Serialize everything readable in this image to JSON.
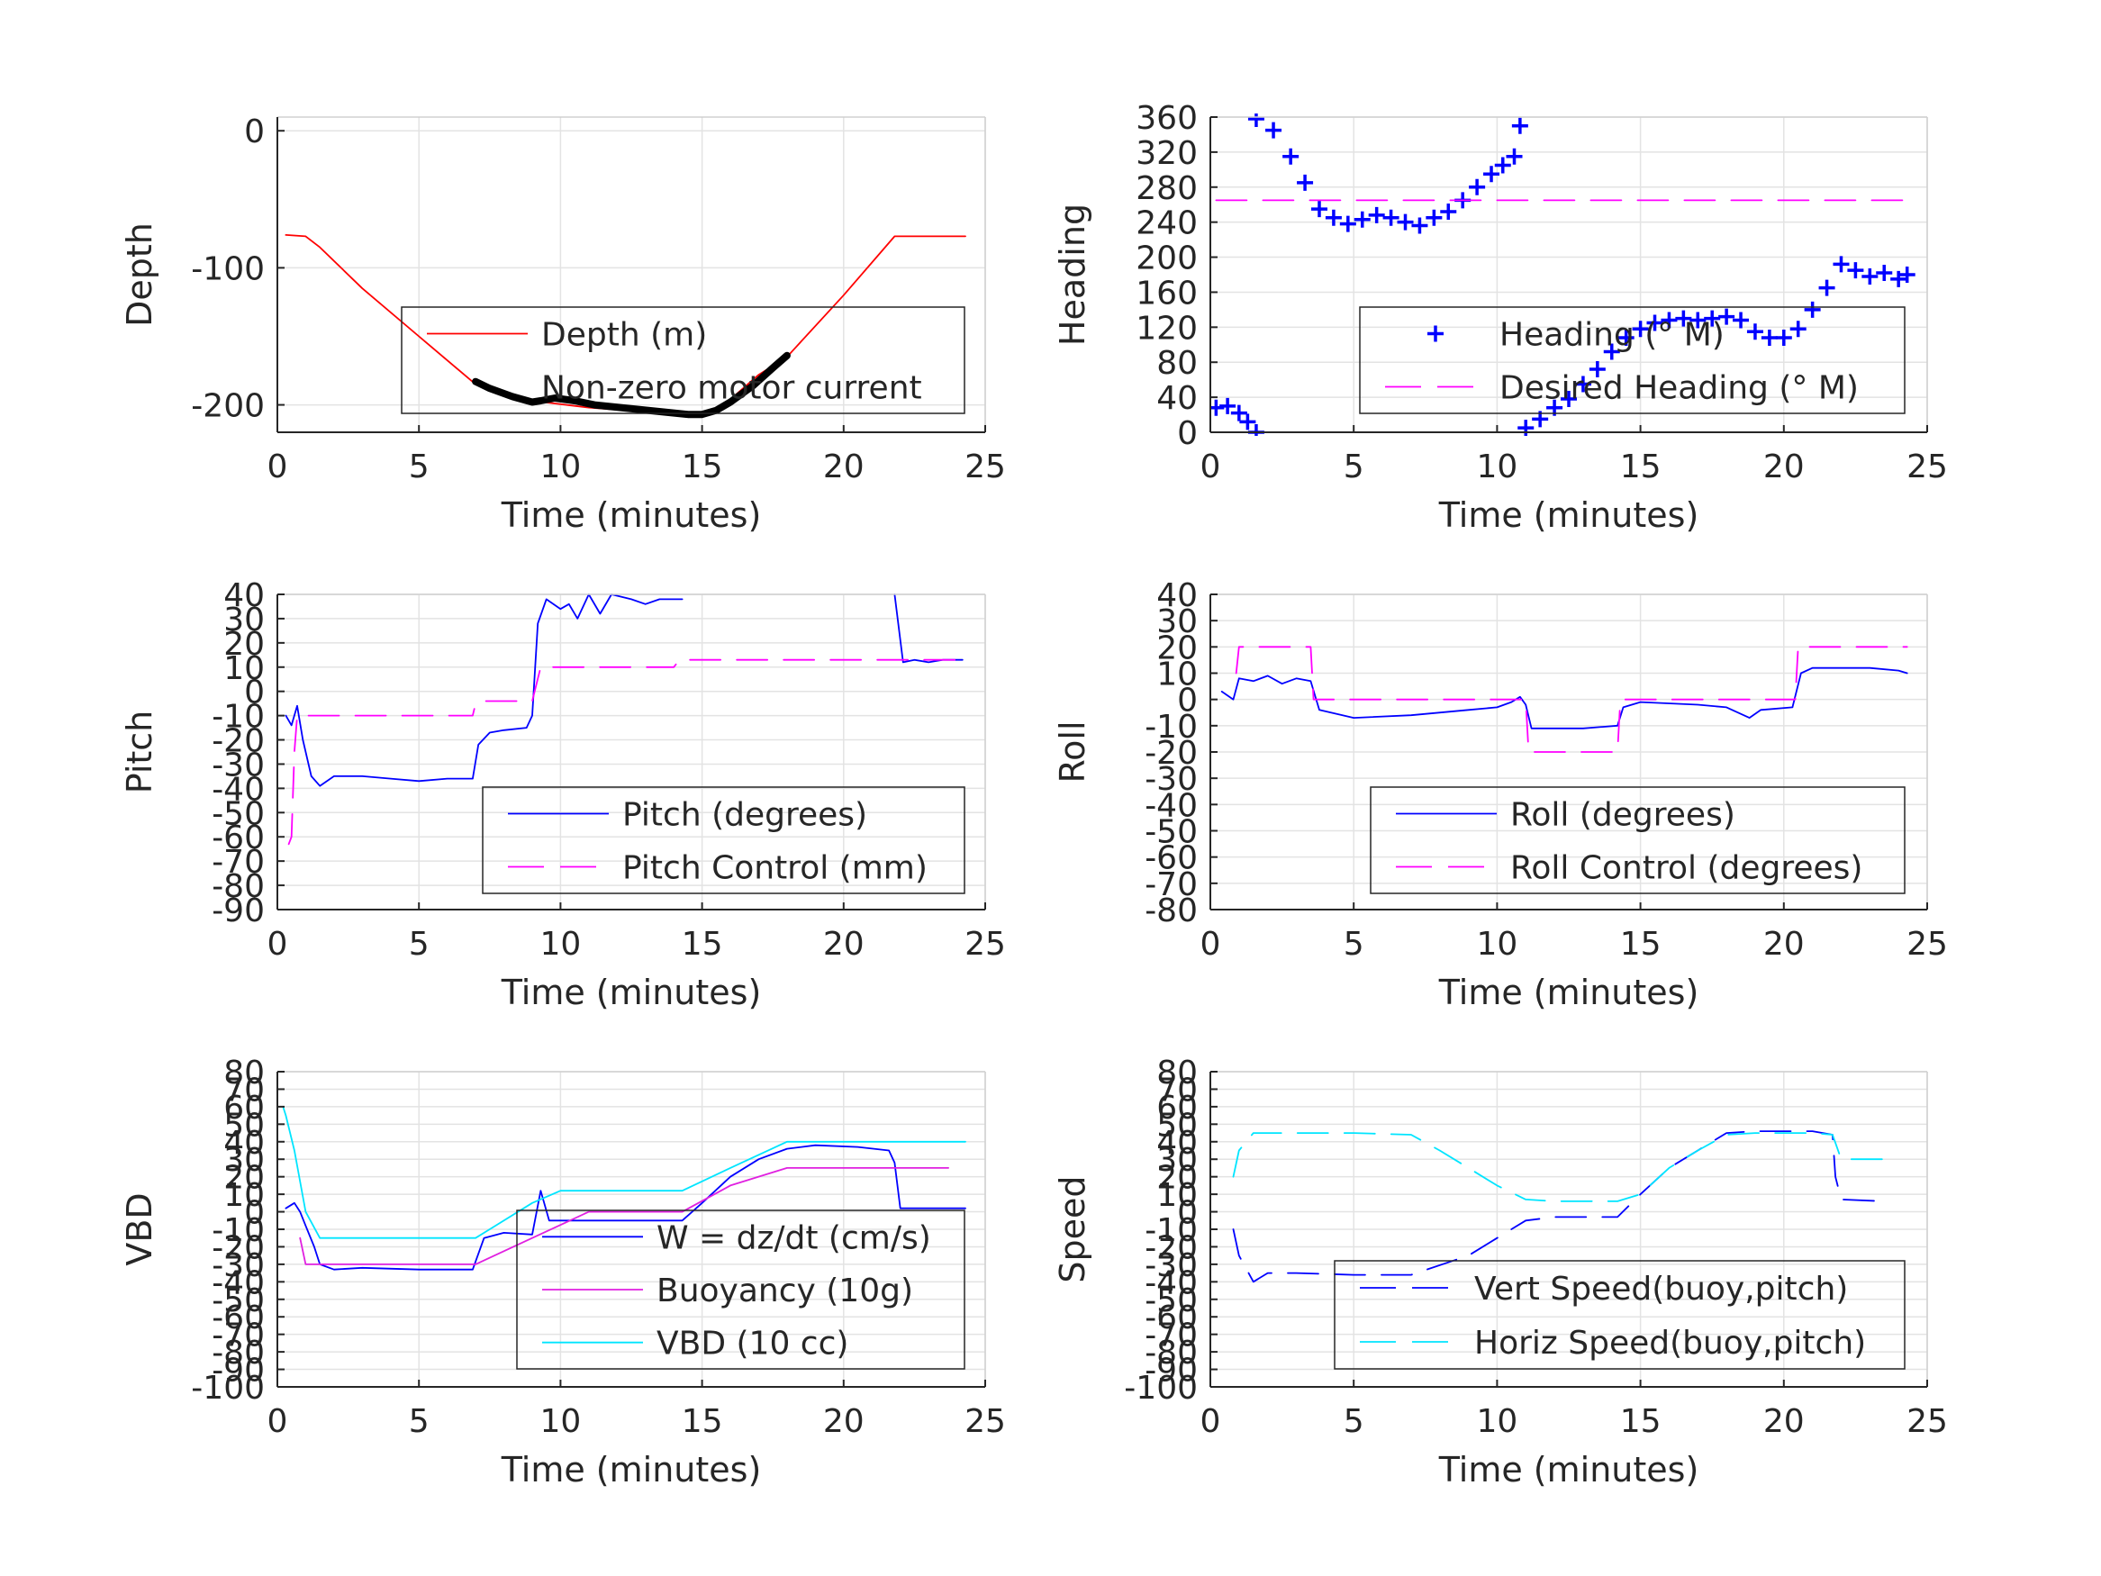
{
  "chart_data": [
    {
      "id": "depth",
      "type": "line",
      "xlabel": "Time (minutes)",
      "ylabel": "Depth",
      "xlim": [
        0,
        25
      ],
      "ylim": [
        -220,
        10
      ],
      "xticks": [
        0,
        5,
        10,
        15,
        20,
        25
      ],
      "yticks": [
        -200,
        -100,
        0
      ],
      "grid": true,
      "legend": {
        "placement": "center-bottom",
        "entries": [
          "Depth (m)",
          "Non-zero motor current"
        ]
      },
      "series": [
        {
          "name": "Depth (m)",
          "color": "#ff0000",
          "style": "solid",
          "x": [
            0.3,
            1.0,
            1.5,
            3.0,
            5.0,
            7.0,
            9.0,
            11.0,
            13.0,
            14.5,
            15.5,
            17.0,
            18.0,
            20.0,
            21.8,
            24.3
          ],
          "y": [
            -76,
            -77,
            -85,
            -115,
            -150,
            -185,
            -197,
            -202,
            -205,
            -208,
            -205,
            -178,
            -165,
            -120,
            -77,
            -77
          ]
        },
        {
          "name": "Non-zero motor current",
          "color": "#000000",
          "style": "thick",
          "x": [
            7.0,
            7.5,
            8.3,
            9.0,
            9.3,
            9.8,
            10.5,
            11.2,
            14.5,
            15.0,
            15.5,
            16.0,
            16.8,
            17.5,
            18.0
          ],
          "y": [
            -183,
            -188,
            -194,
            -198,
            -197,
            -195,
            -197,
            -200,
            -207,
            -207,
            -204,
            -198,
            -186,
            -173,
            -164
          ]
        }
      ]
    },
    {
      "id": "heading",
      "type": "scatter",
      "xlabel": "Time (minutes)",
      "ylabel": "Heading",
      "xlim": [
        0,
        25
      ],
      "ylim": [
        0,
        360
      ],
      "xticks": [
        0,
        5,
        10,
        15,
        20,
        25
      ],
      "yticks": [
        0,
        40,
        80,
        120,
        160,
        200,
        240,
        280,
        320,
        360
      ],
      "grid": true,
      "legend": {
        "placement": "bottom-right",
        "entries": [
          "Heading (° M)",
          "Desired Heading (° M)"
        ]
      },
      "series": [
        {
          "name": "Heading (° M)",
          "color": "#0000ff",
          "marker": "+",
          "x": [
            0.2,
            0.6,
            1.0,
            1.3,
            1.6,
            1.6,
            2.2,
            2.8,
            3.3,
            3.8,
            4.3,
            4.8,
            5.3,
            5.8,
            6.3,
            6.8,
            7.3,
            7.8,
            8.3,
            8.8,
            9.3,
            9.8,
            10.2,
            10.6,
            10.8,
            11.0,
            11.5,
            12.0,
            12.5,
            13.0,
            13.5,
            14.0,
            14.5,
            15.0,
            15.5,
            16.0,
            16.5,
            17.0,
            17.5,
            18.0,
            18.5,
            19.0,
            19.5,
            20.0,
            20.5,
            21.0,
            21.5,
            22.0,
            22.5,
            23.0,
            23.5,
            24.0,
            24.3
          ],
          "y": [
            28,
            30,
            22,
            12,
            0,
            358,
            345,
            315,
            285,
            255,
            245,
            238,
            243,
            248,
            245,
            240,
            236,
            245,
            252,
            265,
            280,
            295,
            305,
            315,
            350,
            5,
            15,
            28,
            38,
            55,
            72,
            92,
            108,
            118,
            125,
            128,
            130,
            128,
            130,
            132,
            128,
            115,
            108,
            108,
            118,
            140,
            165,
            192,
            185,
            178,
            182,
            175,
            180
          ]
        },
        {
          "name": "Desired Heading (° M)",
          "color": "#ff00ff",
          "style": "dashed",
          "x": [
            0.2,
            24.3
          ],
          "y": [
            265,
            265
          ]
        }
      ]
    },
    {
      "id": "pitch",
      "type": "line",
      "xlabel": "Time (minutes)",
      "ylabel": "Pitch",
      "xlim": [
        0,
        25
      ],
      "ylim": [
        -90,
        40
      ],
      "xticks": [
        0,
        5,
        10,
        15,
        20,
        25
      ],
      "yticks": [
        -90,
        -80,
        -70,
        -60,
        -50,
        -40,
        -30,
        -20,
        -10,
        0,
        10,
        20,
        30,
        40
      ],
      "grid": true,
      "legend": {
        "placement": "bottom-right",
        "entries": [
          "Pitch (degrees)",
          "Pitch Control (mm)"
        ]
      },
      "series": [
        {
          "name": "Pitch (degrees)",
          "color": "#0000ff",
          "style": "solid",
          "x": [
            0.3,
            0.5,
            0.7,
            0.9,
            1.2,
            1.5,
            2.0,
            3.0,
            4.0,
            5.0,
            6.0,
            6.9,
            7.1,
            7.5,
            8.0,
            8.8,
            9.0,
            9.2,
            9.5,
            10.0,
            10.3,
            10.6,
            11.0,
            11.4,
            11.8,
            12.5,
            13.0,
            13.5,
            14.3
          ],
          "y": [
            -10,
            -14,
            -6,
            -20,
            -35,
            -39,
            -35,
            -35,
            -36,
            -37,
            -36,
            -36,
            -22,
            -17,
            -16,
            -15,
            -10,
            28,
            38,
            34,
            36,
            30,
            40,
            32,
            40,
            38,
            36,
            38,
            38
          ]
        },
        {
          "name": "Pitch (degrees)",
          "color": "#0000ff",
          "style": "solid",
          "x": [
            21.8,
            22.1,
            22.5,
            23.0,
            23.5,
            24.2
          ],
          "y": [
            40,
            12,
            13,
            12,
            13,
            13
          ]
        },
        {
          "name": "Pitch Control (mm)",
          "color": "#ff00ff",
          "style": "dashed",
          "x": [
            0.4,
            0.5,
            0.6,
            0.7,
            1.0,
            3.0,
            5.0,
            6.9,
            7.0,
            7.3,
            9.0,
            9.3,
            11.0,
            13.0,
            14.0,
            14.2,
            16.0,
            20.0,
            24.3
          ],
          "y": [
            -63,
            -60,
            -25,
            -10,
            -10,
            -10,
            -10,
            -10,
            -5,
            -4,
            -4,
            10,
            10,
            10,
            10,
            13,
            13,
            13,
            13
          ]
        }
      ]
    },
    {
      "id": "roll",
      "type": "line",
      "xlabel": "Time (minutes)",
      "ylabel": "Roll",
      "xlim": [
        0,
        25
      ],
      "ylim": [
        -80,
        40
      ],
      "xticks": [
        0,
        5,
        10,
        15,
        20,
        25
      ],
      "yticks": [
        -80,
        -70,
        -60,
        -50,
        -40,
        -30,
        -20,
        -10,
        0,
        10,
        20,
        30,
        40
      ],
      "grid": true,
      "legend": {
        "placement": "bottom-right",
        "entries": [
          "Roll (degrees)",
          "Roll Control (degrees)"
        ]
      },
      "series": [
        {
          "name": "Roll (degrees)",
          "color": "#0000ff",
          "style": "solid",
          "x": [
            0.4,
            0.8,
            1.0,
            1.5,
            2.0,
            2.5,
            3.0,
            3.5,
            3.8,
            5.0,
            7.0,
            9.0,
            10.0,
            10.5,
            10.8,
            11.0,
            11.2,
            12.0,
            13.0,
            14.2,
            14.4,
            15.0,
            17.0,
            18.0,
            18.8,
            19.2,
            20.3,
            20.6,
            21.0,
            22.0,
            23.0,
            24.0,
            24.3
          ],
          "y": [
            3,
            0,
            8,
            7,
            9,
            6,
            8,
            7,
            -4,
            -7,
            -6,
            -4,
            -3,
            -1,
            1,
            -2,
            -11,
            -11,
            -11,
            -10,
            -3,
            -1,
            -2,
            -3,
            -7,
            -4,
            -3,
            10,
            12,
            12,
            12,
            11,
            10
          ]
        },
        {
          "name": "Roll Control (degrees)",
          "color": "#ff00ff",
          "style": "dashed",
          "x": [
            0.9,
            1.0,
            3.5,
            3.6,
            11.0,
            11.1,
            14.2,
            14.3,
            20.4,
            20.5,
            24.3
          ],
          "y": [
            10,
            20,
            20,
            0,
            0,
            -20,
            -20,
            0,
            0,
            20,
            20
          ]
        }
      ]
    },
    {
      "id": "vbd",
      "type": "line",
      "xlabel": "Time (minutes)",
      "ylabel": "VBD",
      "xlim": [
        0,
        25
      ],
      "ylim": [
        -100,
        80
      ],
      "xticks": [
        0,
        5,
        10,
        15,
        20,
        25
      ],
      "yticks": [
        -100,
        -90,
        -80,
        -70,
        -60,
        -50,
        -40,
        -30,
        -20,
        -10,
        0,
        10,
        20,
        30,
        40,
        50,
        60,
        70,
        80
      ],
      "grid": true,
      "legend": {
        "placement": "bottom-right",
        "entries": [
          "W = dz/dt (cm/s)",
          "Buoyancy (10g)",
          "VBD (10 cc)"
        ]
      },
      "series": [
        {
          "name": "W = dz/dt (cm/s)",
          "color": "#0000ff",
          "style": "solid",
          "x": [
            0.3,
            0.6,
            0.8,
            1.0,
            1.3,
            1.5,
            2.0,
            3.0,
            5.0,
            6.9,
            7.3,
            8.0,
            9.0,
            9.3,
            9.6,
            10.0,
            11.0,
            13.0,
            14.3,
            15.0,
            16.0,
            17.0,
            18.0,
            19.0,
            20.5,
            21.6,
            21.8,
            22.0,
            22.5,
            23.5,
            24.3
          ],
          "y": [
            2,
            5,
            0,
            -8,
            -20,
            -30,
            -33,
            -32,
            -33,
            -33,
            -15,
            -12,
            -13,
            12,
            -5,
            -5,
            -5,
            -5,
            -5,
            5,
            20,
            30,
            36,
            38,
            37,
            35,
            28,
            2,
            2,
            2,
            2
          ]
        },
        {
          "name": "Buoyancy (10g)",
          "color": "#e020e0",
          "style": "solid",
          "x": [
            0.8,
            1.0,
            3.0,
            5.0,
            7.0,
            9.0,
            11.0,
            13.0,
            14.3,
            16.0,
            18.0,
            20.0,
            22.0,
            23.7
          ],
          "y": [
            -15,
            -30,
            -30,
            -30,
            -30,
            -15,
            0,
            0,
            0,
            15,
            25,
            25,
            25,
            25
          ]
        },
        {
          "name": "VBD (10 cc)",
          "color": "#00e5ff",
          "style": "solid",
          "x": [
            0.2,
            0.3,
            0.6,
            1.0,
            1.5,
            3.0,
            5.0,
            7.0,
            7.5,
            9.0,
            10.0,
            11.0,
            12.0,
            13.0,
            14.3,
            16.0,
            18.0,
            20.0,
            22.0,
            24.3
          ],
          "y": [
            60,
            55,
            35,
            0,
            -15,
            -15,
            -15,
            -15,
            -10,
            5,
            12,
            12,
            12,
            12,
            12,
            25,
            40,
            40,
            40,
            40
          ]
        }
      ]
    },
    {
      "id": "speed",
      "type": "line",
      "xlabel": "Time (minutes)",
      "ylabel": "Speed",
      "xlim": [
        0,
        25
      ],
      "ylim": [
        -100,
        80
      ],
      "xticks": [
        0,
        5,
        10,
        15,
        20,
        25
      ],
      "yticks": [
        -100,
        -90,
        -80,
        -70,
        -60,
        -50,
        -40,
        -30,
        -20,
        -10,
        0,
        10,
        20,
        30,
        40,
        50,
        60,
        70,
        80
      ],
      "grid": true,
      "legend": {
        "placement": "bottom-right",
        "entries": [
          "Vert Speed(buoy,pitch)",
          "Horiz Speed(buoy,pitch)"
        ]
      },
      "series": [
        {
          "name": "Vert Speed(buoy,pitch)",
          "color": "#0000ff",
          "style": "dashed",
          "x": [
            0.8,
            1.0,
            1.5,
            2.0,
            3.0,
            5.0,
            7.0,
            9.0,
            10.0,
            11.0,
            12.0,
            14.2,
            15.0,
            16.0,
            17.0,
            18.0,
            19.0,
            20.0,
            21.0,
            21.7,
            21.8,
            22.0,
            23.5
          ],
          "y": [
            -10,
            -25,
            -40,
            -35,
            -35,
            -36,
            -36,
            -25,
            -15,
            -5,
            -3,
            -3,
            10,
            25,
            35,
            45,
            46,
            46,
            46,
            44,
            20,
            7,
            6
          ]
        },
        {
          "name": "Horiz Speed(buoy,pitch)",
          "color": "#00e5ff",
          "style": "dashed",
          "x": [
            0.8,
            1.0,
            1.5,
            2.0,
            3.0,
            5.0,
            7.0,
            8.0,
            9.0,
            10.0,
            11.0,
            12.0,
            14.2,
            15.0,
            16.0,
            17.0,
            18.0,
            19.0,
            20.0,
            21.0,
            21.7,
            22.0,
            23.5
          ],
          "y": [
            20,
            35,
            45,
            45,
            45,
            45,
            44,
            35,
            25,
            15,
            7,
            6,
            6,
            10,
            25,
            35,
            44,
            45,
            45,
            45,
            44,
            30,
            30
          ]
        }
      ]
    }
  ]
}
